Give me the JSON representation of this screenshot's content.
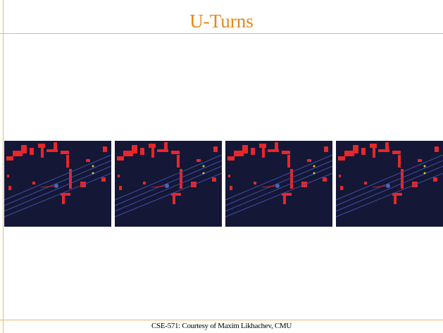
{
  "header": {
    "title": "U-Turns"
  },
  "footer": {
    "text": "CSE-571: Courtesy of Maxim Likhachev, CMU"
  }
}
